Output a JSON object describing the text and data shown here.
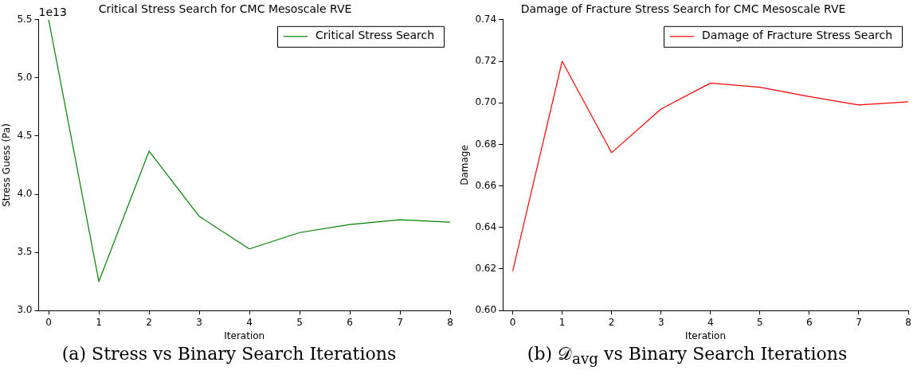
{
  "chart_data": [
    {
      "type": "line",
      "title": "Critical Stress Search for CMC Mesoscale RVE",
      "xlabel": "Iteration",
      "ylabel": "Stress Guess (Pa)",
      "x": [
        0,
        1,
        2,
        3,
        4,
        5,
        6,
        7,
        8
      ],
      "series": [
        {
          "name": "Critical Stress Search",
          "color": "#008000",
          "values": [
            5.5,
            3.25,
            4.37,
            3.81,
            3.53,
            3.67,
            3.74,
            3.78,
            3.76
          ]
        }
      ],
      "xlim": [
        -0.2,
        8
      ],
      "xticks": [
        0,
        1,
        2,
        3,
        4,
        5,
        6,
        7,
        8
      ],
      "ylim": [
        3,
        5.5
      ],
      "yticks": [
        {
          "value": 3,
          "label": "3.0"
        },
        {
          "value": 3.5,
          "label": "3.5"
        },
        {
          "value": 4,
          "label": "4.0"
        },
        {
          "value": 4.5,
          "label": "4.5"
        },
        {
          "value": 5,
          "label": "5.0"
        },
        {
          "value": 5.5,
          "label": "5.5"
        }
      ],
      "grid": false,
      "legend": "top right",
      "marker": "none",
      "line_style": "solid",
      "annotations": [
        "1e13",
        "(a) Stress vs Binary Search Iterations"
      ]
    },
    {
      "type": "line",
      "title": "Damage of Fracture Stress Search for CMC Mesoscale RVE",
      "xlabel": "Iteration",
      "ylabel": "Damage",
      "x": [
        0,
        1,
        2,
        3,
        4,
        5,
        6,
        7,
        8
      ],
      "series": [
        {
          "name": "Damage of Fracture Stress Search",
          "color": "#ff0000",
          "values": [
            0.619,
            0.72,
            0.676,
            0.697,
            0.7095,
            0.7075,
            0.703,
            0.699,
            0.7005
          ]
        }
      ],
      "xlim": [
        -0.2,
        8
      ],
      "xticks": [
        0,
        1,
        2,
        3,
        4,
        5,
        6,
        7,
        8
      ],
      "ylim": [
        0.6,
        0.74
      ],
      "yticks": [
        {
          "value": 0.6,
          "label": "0.60"
        },
        {
          "value": 0.62,
          "label": "0.62"
        },
        {
          "value": 0.64,
          "label": "0.64"
        },
        {
          "value": 0.66,
          "label": "0.66"
        },
        {
          "value": 0.68,
          "label": "0.68"
        },
        {
          "value": 0.7,
          "label": "0.70"
        },
        {
          "value": 0.72,
          "label": "0.72"
        },
        {
          "value": 0.74,
          "label": "0.74"
        }
      ],
      "grid": false,
      "legend": "top right",
      "marker": "none",
      "line_style": "solid",
      "annotations": [
        "(b) 𝒟$_{avg}$ vs Binary Search Iterations"
      ]
    }
  ]
}
